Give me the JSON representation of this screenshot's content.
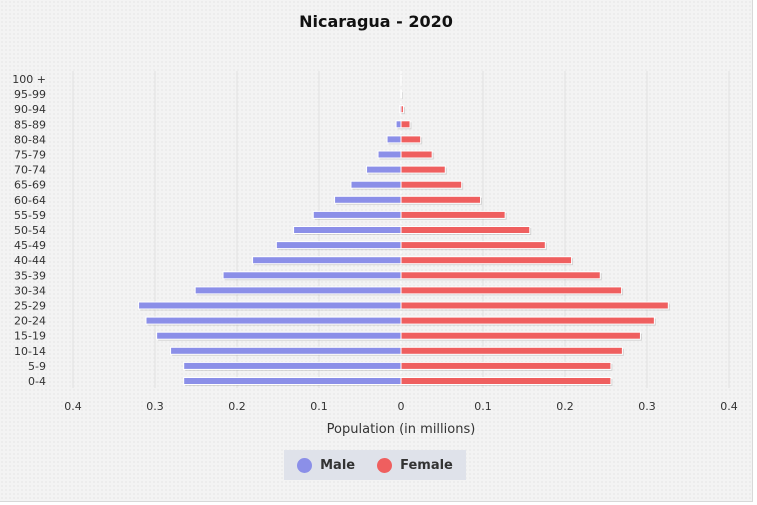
{
  "chart_data": {
    "type": "bar",
    "orientation": "horizontal-population-pyramid",
    "title": "Nicaragua - 2020",
    "xlabel": "Population (in millions)",
    "ylabel": "",
    "xlim": [
      -0.4,
      0.4
    ],
    "x_ticks": [
      "0.4",
      "0.3",
      "0.2",
      "0.1",
      "0",
      "0.1",
      "0.2",
      "0.3",
      "0.4"
    ],
    "categories": [
      "0-4",
      "5-9",
      "10-14",
      "15-19",
      "20-24",
      "25-29",
      "30-34",
      "35-39",
      "40-44",
      "45-49",
      "50-54",
      "55-59",
      "60-64",
      "65-69",
      "70-74",
      "75-79",
      "80-84",
      "85-89",
      "90-94",
      "95-99",
      "100 +"
    ],
    "series": [
      {
        "name": "Male",
        "color": "#8b8fe8",
        "values": [
          0.265,
          0.265,
          0.281,
          0.298,
          0.311,
          0.32,
          0.251,
          0.217,
          0.181,
          0.152,
          0.131,
          0.107,
          0.081,
          0.061,
          0.042,
          0.028,
          0.017,
          0.006,
          0.0015,
          0.0003,
          5e-05
        ]
      },
      {
        "name": "Female",
        "color": "#ef5f5f",
        "values": [
          0.256,
          0.256,
          0.27,
          0.292,
          0.309,
          0.326,
          0.269,
          0.243,
          0.208,
          0.176,
          0.157,
          0.127,
          0.097,
          0.074,
          0.054,
          0.038,
          0.024,
          0.011,
          0.003,
          0.0005,
          0.0001
        ]
      }
    ],
    "grid": true,
    "legend_position": "bottom"
  }
}
